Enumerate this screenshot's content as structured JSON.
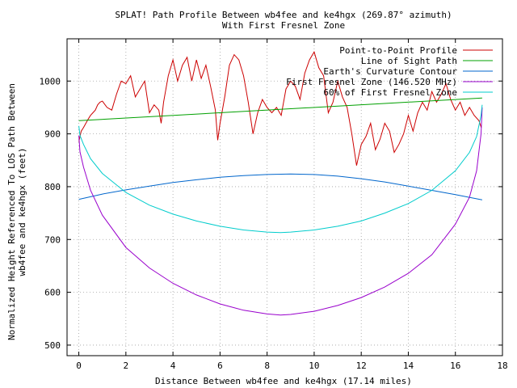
{
  "chart_data": {
    "type": "line",
    "title": "SPLAT! Path Profile Between wb4fee and ke4hgx (269.87° azimuth)",
    "subtitle": "With First Fresnel Zone",
    "xlabel": "Distance Between wb4fee and ke4hgx (17.14 miles)",
    "ylabel_lines": [
      "Normalized Height Referenced To LOS Path Between",
      "wb4fee and ke4hgx (feet)"
    ],
    "xlim": [
      -0.5,
      18
    ],
    "ylim": [
      480,
      1080
    ],
    "xticks": [
      0,
      2,
      4,
      6,
      8,
      10,
      12,
      14,
      16,
      18
    ],
    "yticks": [
      500,
      600,
      700,
      800,
      900,
      1000
    ],
    "grid": true,
    "legend_position": "top-right",
    "series": [
      {
        "name": "Point-to-Point Profile",
        "color": "#cc0000",
        "x": [
          0,
          0.1,
          0.2,
          0.3,
          0.4,
          0.5,
          0.6,
          0.7,
          0.8,
          0.9,
          1.0,
          1.2,
          1.4,
          1.6,
          1.8,
          2.0,
          2.2,
          2.4,
          2.6,
          2.8,
          3.0,
          3.2,
          3.4,
          3.5,
          3.6,
          3.8,
          4.0,
          4.2,
          4.4,
          4.6,
          4.8,
          5.0,
          5.2,
          5.4,
          5.6,
          5.8,
          5.9,
          6.0,
          6.2,
          6.4,
          6.6,
          6.8,
          7.0,
          7.2,
          7.4,
          7.6,
          7.8,
          8.0,
          8.2,
          8.4,
          8.6,
          8.8,
          9.0,
          9.2,
          9.4,
          9.6,
          9.8,
          10.0,
          10.2,
          10.4,
          10.6,
          10.8,
          11.0,
          11.2,
          11.4,
          11.6,
          11.8,
          12.0,
          12.2,
          12.4,
          12.6,
          12.8,
          13.0,
          13.2,
          13.4,
          13.6,
          13.8,
          14.0,
          14.2,
          14.4,
          14.6,
          14.8,
          15.0,
          15.2,
          15.4,
          15.6,
          15.8,
          16.0,
          16.2,
          16.4,
          16.6,
          16.8,
          17.0,
          17.1
        ],
        "y": [
          885,
          905,
          912,
          920,
          928,
          935,
          940,
          945,
          955,
          960,
          962,
          950,
          945,
          975,
          1000,
          995,
          1010,
          970,
          985,
          1000,
          940,
          955,
          945,
          920,
          960,
          1010,
          1040,
          1000,
          1030,
          1045,
          1000,
          1040,
          1005,
          1030,
          990,
          945,
          888,
          920,
          970,
          1030,
          1050,
          1040,
          1010,
          960,
          900,
          940,
          965,
          950,
          940,
          950,
          935,
          985,
          1000,
          990,
          965,
          1015,
          1040,
          1055,
          1025,
          1010,
          940,
          960,
          1000,
          970,
          950,
          900,
          840,
          880,
          895,
          920,
          870,
          890,
          920,
          905,
          865,
          880,
          900,
          935,
          905,
          940,
          960,
          945,
          980,
          960,
          975,
          995,
          965,
          945,
          960,
          935,
          950,
          935,
          925,
          912
        ]
      },
      {
        "name": "Line of Sight Path",
        "color": "#00a000",
        "x": [
          0,
          17.14
        ],
        "y": [
          925,
          968
        ]
      },
      {
        "name": "Earth's Curvature Contour",
        "color": "#0066cc",
        "x": [
          0,
          1,
          2,
          3,
          4,
          5,
          6,
          7,
          8,
          9,
          10,
          11,
          12,
          13,
          14,
          15,
          16,
          17.14
        ],
        "y": [
          776,
          786,
          794,
          801,
          808,
          813,
          818,
          821,
          823,
          824,
          823,
          820,
          815,
          809,
          801,
          793,
          785,
          775
        ]
      },
      {
        "name": "First Fresnel Zone (146.520 MHz)",
        "color": "#9900cc",
        "x": [
          0,
          0.05,
          0.2,
          0.5,
          1,
          2,
          3,
          4,
          5,
          6,
          7,
          8,
          8.57,
          9,
          10,
          11,
          12,
          13,
          14,
          15,
          16,
          16.6,
          16.9,
          17.09,
          17.14
        ],
        "y": [
          897,
          866,
          837,
          793,
          746,
          685,
          646,
          617,
          595,
          578,
          566,
          559,
          557,
          558,
          564,
          575,
          590,
          610,
          636,
          671,
          729,
          780,
          830,
          900,
          950
        ]
      },
      {
        "name": "60% of First Fresnel Zone",
        "color": "#00cccc",
        "x": [
          0,
          0.05,
          0.2,
          0.5,
          1,
          2,
          3,
          4,
          5,
          6,
          7,
          8,
          8.57,
          9,
          10,
          11,
          12,
          13,
          14,
          15,
          16,
          16.6,
          16.9,
          17.09,
          17.14
        ],
        "y": [
          915,
          897,
          880,
          853,
          825,
          789,
          765,
          748,
          735,
          725,
          718,
          714,
          713,
          714,
          718,
          725,
          735,
          750,
          768,
          793,
          830,
          865,
          895,
          935,
          955
        ]
      }
    ]
  }
}
